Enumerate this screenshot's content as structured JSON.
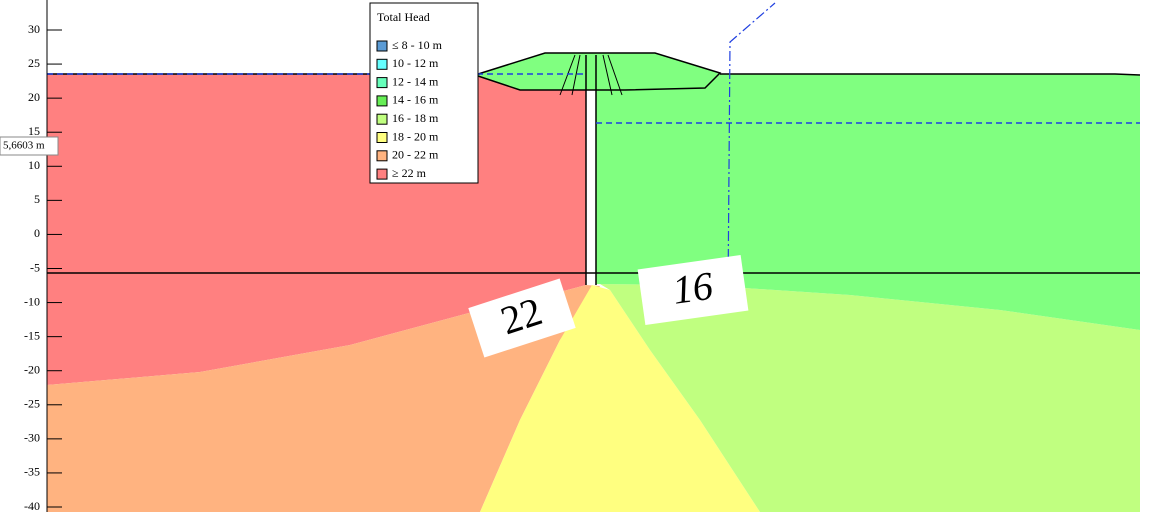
{
  "axis": {
    "ylim": [
      -40,
      30
    ],
    "yticks": [
      30,
      25,
      20,
      15,
      10,
      5,
      0,
      -5,
      -10,
      -15,
      -20,
      -25,
      -30,
      -35,
      -40
    ]
  },
  "legend": {
    "title": "Total Head",
    "items": [
      {
        "label": "≤ 8 - 10 m",
        "color": "#5b9bd5"
      },
      {
        "label": "10 - 12 m",
        "color": "#66ffff"
      },
      {
        "label": "12 - 14 m",
        "color": "#66ffbb"
      },
      {
        "label": "14 - 16 m",
        "color": "#66ee55"
      },
      {
        "label": "16 - 18 m",
        "color": "#c0ff80"
      },
      {
        "label": "18 - 20 m",
        "color": "#ffff80"
      },
      {
        "label": "20 - 22 m",
        "color": "#ffb380"
      },
      {
        "label": "≥ 22 m",
        "color": "#ff8080"
      }
    ]
  },
  "contour_labels": [
    "22",
    "16"
  ],
  "probe_label": "5,6603 m"
}
